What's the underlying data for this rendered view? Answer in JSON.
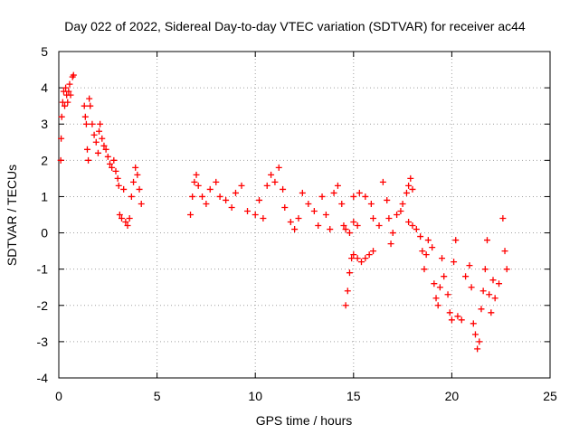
{
  "chart_data": {
    "type": "scatter",
    "title": "Day 022 of 2022, Sidereal Day-to-day VTEC variation (SDTVAR) for receiver ac44",
    "xlabel": "GPS time / hours",
    "ylabel": "SDTVAR / TECUs",
    "xlim": [
      0,
      25
    ],
    "ylim": [
      -4,
      5
    ],
    "xticks": [
      0,
      5,
      10,
      15,
      20,
      25
    ],
    "yticks": [
      -4,
      -3,
      -2,
      -1,
      0,
      1,
      2,
      3,
      4,
      5
    ],
    "grid": true,
    "marker": "+",
    "color": "#ff0000",
    "series": [
      {
        "name": "SDTVAR",
        "points": [
          [
            0.1,
            2.0
          ],
          [
            0.12,
            2.6
          ],
          [
            0.15,
            3.2
          ],
          [
            0.2,
            3.6
          ],
          [
            0.25,
            3.9
          ],
          [
            0.3,
            3.5
          ],
          [
            0.35,
            4.0
          ],
          [
            0.4,
            3.8
          ],
          [
            0.45,
            3.6
          ],
          [
            0.5,
            3.9
          ],
          [
            0.55,
            4.1
          ],
          [
            0.6,
            3.8
          ],
          [
            0.7,
            4.3
          ],
          [
            0.75,
            4.35
          ],
          [
            1.3,
            3.5
          ],
          [
            1.35,
            3.2
          ],
          [
            1.4,
            3.0
          ],
          [
            1.45,
            2.3
          ],
          [
            1.5,
            2.0
          ],
          [
            1.55,
            3.7
          ],
          [
            1.6,
            3.5
          ],
          [
            1.7,
            3.0
          ],
          [
            1.8,
            2.7
          ],
          [
            1.9,
            2.5
          ],
          [
            2.0,
            2.2
          ],
          [
            2.05,
            2.8
          ],
          [
            2.1,
            3.0
          ],
          [
            2.2,
            2.6
          ],
          [
            2.3,
            2.4
          ],
          [
            2.4,
            2.3
          ],
          [
            2.5,
            2.1
          ],
          [
            2.6,
            1.9
          ],
          [
            2.7,
            1.8
          ],
          [
            2.8,
            2.0
          ],
          [
            2.9,
            1.7
          ],
          [
            3.0,
            1.5
          ],
          [
            3.05,
            1.3
          ],
          [
            3.1,
            0.5
          ],
          [
            3.2,
            0.4
          ],
          [
            3.3,
            1.2
          ],
          [
            3.4,
            0.3
          ],
          [
            3.5,
            0.2
          ],
          [
            3.6,
            0.4
          ],
          [
            3.7,
            1.0
          ],
          [
            3.8,
            1.4
          ],
          [
            3.9,
            1.8
          ],
          [
            4.0,
            1.6
          ],
          [
            4.1,
            1.2
          ],
          [
            4.2,
            0.8
          ],
          [
            6.7,
            0.5
          ],
          [
            6.8,
            1.0
          ],
          [
            6.9,
            1.4
          ],
          [
            7.0,
            1.6
          ],
          [
            7.1,
            1.3
          ],
          [
            7.3,
            1.0
          ],
          [
            7.5,
            0.8
          ],
          [
            7.7,
            1.2
          ],
          [
            8.0,
            1.4
          ],
          [
            8.2,
            1.0
          ],
          [
            8.5,
            0.9
          ],
          [
            8.8,
            0.7
          ],
          [
            9.0,
            1.1
          ],
          [
            9.3,
            1.3
          ],
          [
            9.6,
            0.6
          ],
          [
            10.0,
            0.5
          ],
          [
            10.2,
            0.9
          ],
          [
            10.4,
            0.4
          ],
          [
            10.6,
            1.3
          ],
          [
            10.8,
            1.6
          ],
          [
            11.0,
            1.4
          ],
          [
            11.2,
            1.8
          ],
          [
            11.4,
            1.2
          ],
          [
            11.5,
            0.7
          ],
          [
            11.8,
            0.3
          ],
          [
            12.0,
            0.1
          ],
          [
            12.2,
            0.4
          ],
          [
            12.4,
            1.1
          ],
          [
            12.7,
            0.8
          ],
          [
            13.0,
            0.6
          ],
          [
            13.2,
            0.2
          ],
          [
            13.4,
            1.0
          ],
          [
            13.6,
            0.5
          ],
          [
            13.8,
            0.1
          ],
          [
            14.0,
            1.1
          ],
          [
            14.2,
            1.3
          ],
          [
            14.4,
            0.8
          ],
          [
            14.5,
            0.2
          ],
          [
            14.6,
            0.1
          ],
          [
            14.8,
            0.0
          ],
          [
            15.0,
            0.3
          ],
          [
            15.2,
            0.2
          ],
          [
            14.6,
            -2.0
          ],
          [
            14.7,
            -1.6
          ],
          [
            14.8,
            -1.1
          ],
          [
            14.9,
            -0.7
          ],
          [
            15.0,
            -0.6
          ],
          [
            15.2,
            -0.7
          ],
          [
            15.4,
            -0.8
          ],
          [
            15.6,
            -0.7
          ],
          [
            15.8,
            -0.6
          ],
          [
            16.0,
            -0.5
          ],
          [
            15.0,
            1.0
          ],
          [
            15.3,
            1.1
          ],
          [
            15.6,
            1.0
          ],
          [
            15.9,
            0.8
          ],
          [
            16.0,
            0.4
          ],
          [
            16.3,
            0.2
          ],
          [
            16.5,
            1.4
          ],
          [
            16.7,
            0.9
          ],
          [
            16.8,
            0.4
          ],
          [
            16.9,
            -0.3
          ],
          [
            17.0,
            0.0
          ],
          [
            17.2,
            0.5
          ],
          [
            17.4,
            0.6
          ],
          [
            17.5,
            0.8
          ],
          [
            17.7,
            1.1
          ],
          [
            17.8,
            1.3
          ],
          [
            17.9,
            1.5
          ],
          [
            18.0,
            1.2
          ],
          [
            17.8,
            0.3
          ],
          [
            18.0,
            0.2
          ],
          [
            18.2,
            0.1
          ],
          [
            18.4,
            -0.1
          ],
          [
            18.5,
            -0.5
          ],
          [
            18.6,
            -1.0
          ],
          [
            18.7,
            -0.6
          ],
          [
            18.8,
            -0.2
          ],
          [
            19.0,
            -0.4
          ],
          [
            19.1,
            -1.4
          ],
          [
            19.2,
            -1.8
          ],
          [
            19.3,
            -2.0
          ],
          [
            19.4,
            -1.5
          ],
          [
            19.5,
            -0.7
          ],
          [
            19.6,
            -1.2
          ],
          [
            19.8,
            -1.7
          ],
          [
            19.9,
            -2.2
          ],
          [
            20.0,
            -2.4
          ],
          [
            20.1,
            -0.8
          ],
          [
            20.2,
            -0.2
          ],
          [
            20.3,
            -2.3
          ],
          [
            20.5,
            -2.4
          ],
          [
            20.7,
            -1.2
          ],
          [
            20.9,
            -0.9
          ],
          [
            21.0,
            -1.5
          ],
          [
            21.1,
            -2.5
          ],
          [
            21.2,
            -2.8
          ],
          [
            21.3,
            -3.2
          ],
          [
            21.4,
            -3.0
          ],
          [
            21.5,
            -2.1
          ],
          [
            21.6,
            -1.6
          ],
          [
            21.7,
            -1.0
          ],
          [
            21.8,
            -0.2
          ],
          [
            21.9,
            -1.7
          ],
          [
            22.0,
            -2.2
          ],
          [
            22.1,
            -1.3
          ],
          [
            22.2,
            -1.8
          ],
          [
            22.4,
            -1.4
          ],
          [
            22.6,
            0.4
          ],
          [
            22.7,
            -0.5
          ],
          [
            22.8,
            -1.0
          ]
        ]
      }
    ]
  }
}
